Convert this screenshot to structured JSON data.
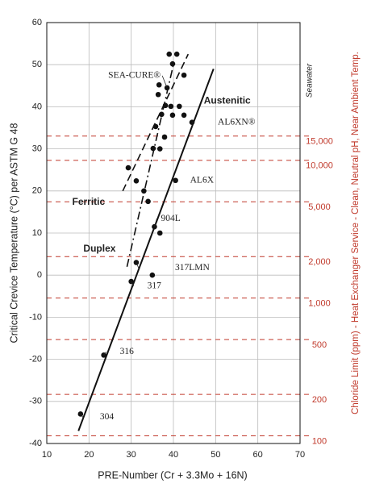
{
  "chart_data": {
    "type": "scatter",
    "x_label": "PRE-Number (Cr + 3.3Mo + 16N)",
    "y_label": "Critical Crevice Temperature (°C) per ASTM G 48",
    "y2_label": "Chloride Limit (ppm) - Heat Exchanger Service - Clean, Neutral pH, Near Ambient Temp.",
    "y2_note": "Seawater",
    "xlim": [
      10,
      70
    ],
    "xticks": [
      10,
      20,
      30,
      40,
      50,
      60,
      70
    ],
    "ylim": [
      -40,
      60
    ],
    "yticks": [
      -40,
      -30,
      -20,
      -10,
      0,
      10,
      20,
      30,
      40,
      50,
      60
    ],
    "y2lim": [
      88,
      100000
    ],
    "y2log": true,
    "y2ticks": [
      100,
      200,
      500,
      {
        "value": 1000,
        "label": "1,000"
      },
      {
        "value": 2000,
        "label": "2,000"
      },
      {
        "value": 5000,
        "label": "5,000"
      },
      {
        "value": 10000,
        "label": "10,000"
      },
      {
        "value": 15000,
        "label": "15,000"
      }
    ],
    "grid": true,
    "point_color": "#111111",
    "y2_color": "#c0392b",
    "x": [
      18,
      23.5,
      30,
      31.2,
      35,
      35.5,
      36.8,
      40.5,
      29.3,
      31.2,
      33,
      34,
      35.2,
      35.8,
      36.8,
      37.9,
      37.2,
      38.1,
      36.4,
      36.6,
      39,
      40.8,
      39.8,
      39.4,
      41.4,
      39.8,
      42.5,
      42.5,
      44.4,
      38.5
    ],
    "y": [
      -33,
      -19,
      -1.5,
      3,
      0,
      11.5,
      10,
      22.5,
      25.5,
      22.4,
      20,
      17.5,
      30.1,
      35.3,
      30,
      32.8,
      38.2,
      40.3,
      42.9,
      45.2,
      52.5,
      52.5,
      50.2,
      40.1,
      40.1,
      38,
      38,
      47.5,
      36.3,
      44.5
    ],
    "lines": [
      {
        "name": "Austenitic",
        "style": "solid",
        "x": [
          17.5,
          49.5
        ],
        "y": [
          -37,
          49
        ]
      },
      {
        "name": "Ferritic",
        "style": "dashed",
        "x": [
          28,
          43.5
        ],
        "y": [
          20,
          52.5
        ]
      },
      {
        "name": "Duplex",
        "style": "dashdot",
        "x": [
          29,
          40
        ],
        "y": [
          2,
          50
        ]
      }
    ],
    "annotations": [
      {
        "text": "SEA-CURE®",
        "x": 38.5,
        "y": 44.5
      },
      {
        "text": "AL6XN®",
        "x": 44.4,
        "y": 36.3
      },
      {
        "text": "AL6X",
        "x": 40.5,
        "y": 22.5
      },
      {
        "text": "904L",
        "x": 35.5,
        "y": 11.5
      },
      {
        "text": "317LMN",
        "x": 31.2,
        "y": 3
      },
      {
        "text": "317",
        "x": 30,
        "y": -1.5
      },
      {
        "text": "316",
        "x": 23.5,
        "y": -19
      },
      {
        "text": "304",
        "x": 18,
        "y": -33
      }
    ]
  }
}
